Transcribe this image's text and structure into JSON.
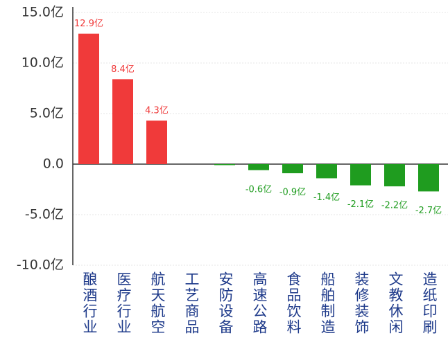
{
  "chart_data": {
    "type": "bar",
    "categories": [
      "酿酒行业",
      "医疗行业",
      "航天航空",
      "工艺商品",
      "安防设备",
      "高速公路",
      "食品饮料",
      "船舶制造",
      "装修装饰",
      "文教休闲",
      "造纸印刷"
    ],
    "values": [
      12.9,
      8.4,
      4.3,
      0,
      -0.1,
      -0.6,
      -0.9,
      -1.4,
      -2.1,
      -2.2,
      -2.7
    ],
    "value_labels": [
      "12.9亿",
      "8.4亿",
      "4.3亿",
      null,
      null,
      "-0.6亿",
      "-0.9亿",
      "-1.4亿",
      "-2.1亿",
      "-2.2亿",
      "-2.7亿"
    ],
    "colors": {
      "positive": "#f03a3a",
      "negative": "#1f9c1f"
    },
    "ylim": [
      -10,
      15
    ],
    "yticks": [
      {
        "value": 15,
        "label": "15.0亿"
      },
      {
        "value": 10,
        "label": "10.0亿"
      },
      {
        "value": 5,
        "label": "5.0亿"
      },
      {
        "value": 0,
        "label": "0.0"
      },
      {
        "value": -5,
        "label": "-5.0亿"
      },
      {
        "value": -10,
        "label": "-10.0亿"
      }
    ],
    "grid": true
  }
}
